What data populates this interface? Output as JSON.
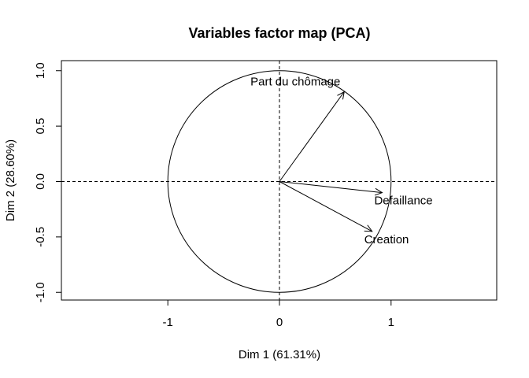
{
  "chart_data": {
    "type": "scatter",
    "subtype": "pca-correlation-circle",
    "title": "Variables factor map (PCA)",
    "xlabel": "Dim 1 (61.31%)",
    "ylabel": "Dim 2 (28.60%)",
    "xlim": [
      -1.95,
      1.95
    ],
    "ylim": [
      -1.08,
      1.08
    ],
    "x_ticks": [
      -1,
      0,
      1
    ],
    "x_tick_labels": [
      "-1",
      "0",
      "1"
    ],
    "y_ticks": [
      -1.0,
      -0.5,
      0.0,
      0.5,
      1.0
    ],
    "y_tick_labels": [
      "-1.0",
      "-0.5",
      "0.0",
      "0.5",
      "1.0"
    ],
    "grid": false,
    "unit_circle": true,
    "reference_lines": [
      0
    ],
    "variables": [
      {
        "name": "Part du chômage",
        "x": 0.58,
        "y": 0.81
      },
      {
        "name": "Defaillance",
        "x": 0.92,
        "y": -0.1
      },
      {
        "name": "Creation",
        "x": 0.83,
        "y": -0.45
      }
    ],
    "colors": {
      "arrows": "#000000",
      "axes": "#000000"
    }
  }
}
